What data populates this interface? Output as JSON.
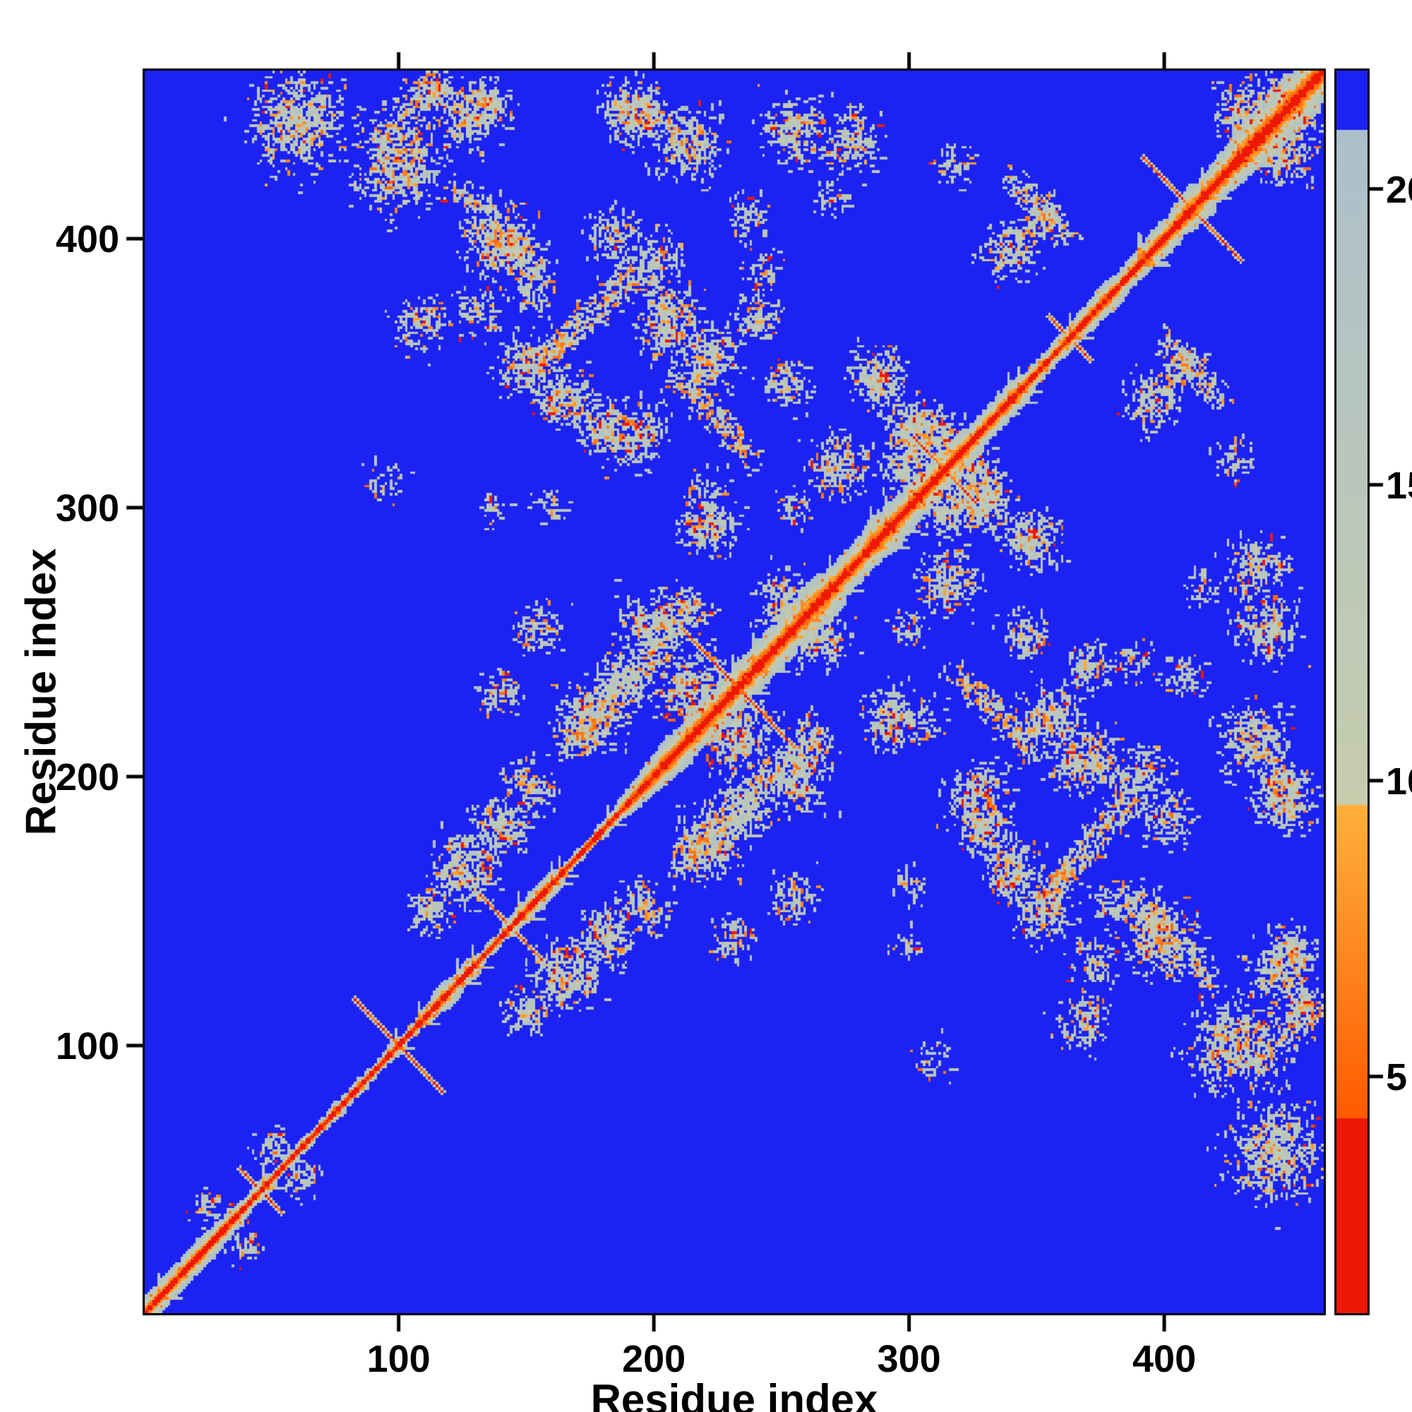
{
  "figure": {
    "background": "#FFFFFF",
    "axis_color": "#000000"
  },
  "chart_data": {
    "type": "heatmap",
    "title": "",
    "xlabel": "Residue index",
    "ylabel": "Residue index",
    "x_range": [
      1,
      462
    ],
    "y_range": [
      1,
      462
    ],
    "x_ticks": [
      100,
      200,
      300,
      400
    ],
    "y_ticks": [
      100,
      200,
      300,
      400
    ],
    "grid": false,
    "legend": "none",
    "colorbar": {
      "position": "right",
      "vmin": 1,
      "vmax": 22,
      "ticks": [
        5,
        10,
        15,
        20
      ]
    },
    "colormap": {
      "background_value": 30,
      "blue_threshold": 21,
      "blue": "#1C22F2",
      "sage_lo": 9.6,
      "sage_color_lo": "#C6CCAC",
      "sage_color_hi": "#ACC0CC",
      "orange_lo": 4.3,
      "orange_color_lo": "#FF5A00",
      "orange_color_hi": "#FFB03C",
      "red": "#EE1806"
    },
    "matrix_size": 462,
    "seed": 11,
    "diagonal_band": {
      "min_width": 2.5,
      "max_width": 12,
      "walk": 1.6
    },
    "hairpins": [
      [
        45,
        8
      ],
      [
        99,
        17
      ],
      [
        143,
        12
      ],
      [
        232,
        22
      ],
      [
        313,
        12
      ],
      [
        362,
        8
      ],
      [
        410,
        19
      ]
    ],
    "blobs": [
      [
        60,
        443,
        20,
        0.8
      ],
      [
        100,
        428,
        18,
        0.9
      ],
      [
        135,
        450,
        10,
        0.7
      ],
      [
        196,
        446,
        12,
        0.7
      ],
      [
        255,
        440,
        13,
        0.8
      ],
      [
        278,
        436,
        12,
        0.7
      ],
      [
        318,
        428,
        8,
        0.5
      ],
      [
        430,
        447,
        12,
        0.8
      ],
      [
        445,
        455,
        8,
        0.7
      ],
      [
        108,
        368,
        12,
        0.5
      ],
      [
        130,
        372,
        10,
        0.5
      ],
      [
        95,
        310,
        8,
        0.4
      ],
      [
        150,
        352,
        12,
        0.7
      ],
      [
        165,
        340,
        12,
        0.8
      ],
      [
        180,
        330,
        12,
        0.8
      ],
      [
        192,
        325,
        11,
        0.7
      ],
      [
        205,
        368,
        14,
        0.9
      ],
      [
        222,
        356,
        12,
        0.9
      ],
      [
        240,
        370,
        10,
        0.7
      ],
      [
        252,
        346,
        10,
        0.7
      ],
      [
        242,
        388,
        9,
        0.4
      ],
      [
        270,
        415,
        8,
        0.4
      ],
      [
        288,
        348,
        12,
        0.8
      ],
      [
        305,
        330,
        10,
        0.9
      ],
      [
        300,
        315,
        12,
        0.9
      ],
      [
        315,
        325,
        10,
        0.8
      ],
      [
        340,
        395,
        12,
        0.8
      ],
      [
        352,
        408,
        8,
        0.7
      ],
      [
        330,
        300,
        10,
        0.7
      ],
      [
        315,
        272,
        12,
        0.8
      ],
      [
        348,
        288,
        8,
        0.5
      ],
      [
        175,
        222,
        14,
        0.9
      ],
      [
        188,
        238,
        11,
        0.8
      ],
      [
        200,
        255,
        14,
        0.9
      ],
      [
        214,
        262,
        9,
        0.7
      ],
      [
        215,
        232,
        14,
        0.9
      ],
      [
        250,
        265,
        12,
        0.8
      ],
      [
        125,
        165,
        14,
        0.9
      ],
      [
        140,
        182,
        12,
        0.9
      ],
      [
        112,
        150,
        10,
        0.7
      ],
      [
        152,
        196,
        10,
        0.7
      ],
      [
        155,
        255,
        10,
        0.6
      ],
      [
        140,
        232,
        9,
        0.6
      ],
      [
        218,
        292,
        10,
        0.6
      ],
      [
        225,
        292,
        10,
        0.5
      ],
      [
        255,
        300,
        8,
        0.5
      ],
      [
        390,
        200,
        13,
        0.6
      ],
      [
        402,
        184,
        11,
        0.6
      ],
      [
        408,
        238,
        9,
        0.5
      ],
      [
        435,
        213,
        14,
        0.8
      ],
      [
        447,
        190,
        12,
        0.8
      ],
      [
        446,
        128,
        13,
        0.8
      ],
      [
        398,
        140,
        15,
        0.9
      ],
      [
        380,
        152,
        9,
        0.6
      ],
      [
        452,
        112,
        10,
        0.7
      ],
      [
        333,
        200,
        8,
        0.4
      ],
      [
        305,
        220,
        9,
        0.5
      ],
      [
        25,
        40,
        7,
        0.6
      ],
      [
        50,
        62,
        8,
        0.6
      ],
      [
        160,
        300,
        8,
        0.4
      ],
      [
        137,
        300,
        7,
        0.4
      ]
    ],
    "streaks": [
      [
        153,
        352,
        192,
        386,
        3,
        0.8
      ],
      [
        208,
        348,
        238,
        318,
        3,
        0.7
      ],
      [
        165,
        208,
        200,
        243,
        3,
        0.7
      ],
      [
        385,
        155,
        415,
        125,
        3,
        0.8
      ],
      [
        90,
        435,
        115,
        460,
        3,
        0.5
      ],
      [
        340,
        420,
        362,
        398,
        3,
        0.6
      ]
    ]
  }
}
